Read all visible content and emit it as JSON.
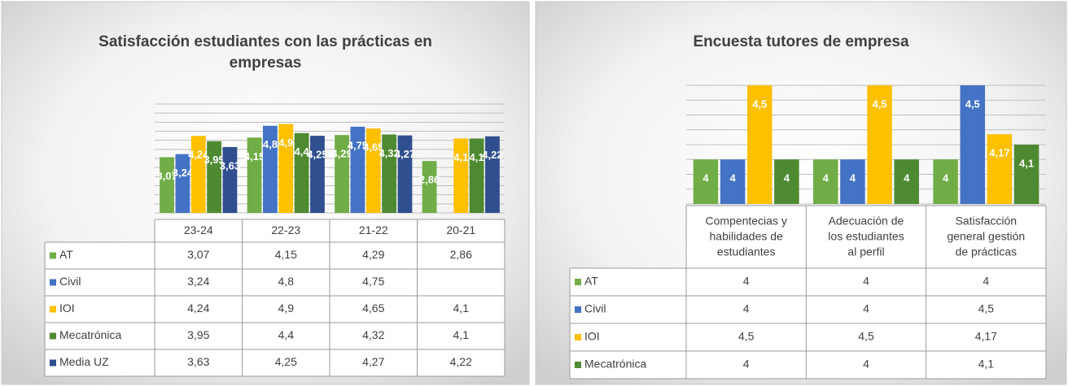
{
  "chart_data": [
    {
      "type": "bar",
      "title": "Satisfacción estudiantes con las prácticas en empresas",
      "categories": [
        "23-24",
        "22-23",
        "21-22",
        "20-21"
      ],
      "series": [
        {
          "name": "AT",
          "color": "#70ad47",
          "values": [
            3.07,
            4.15,
            4.29,
            2.86
          ],
          "value_labels": [
            "3,07",
            "4,15",
            "4,29",
            "2,86"
          ]
        },
        {
          "name": "Civil",
          "color": "#4472c4",
          "values": [
            3.24,
            4.8,
            4.75,
            null
          ],
          "value_labels": [
            "3,24",
            "4,8",
            "4,75",
            null
          ]
        },
        {
          "name": "IOI",
          "color": "#ffc000",
          "values": [
            4.24,
            4.9,
            4.65,
            4.1
          ],
          "value_labels": [
            "4,24",
            "4,9",
            "4,65",
            "4,1"
          ]
        },
        {
          "name": "Mecatrónica",
          "color": "#4e8a32",
          "values": [
            3.95,
            4.4,
            4.32,
            4.1
          ],
          "value_labels": [
            "3,95",
            "4,4",
            "4,32",
            "4,1"
          ]
        },
        {
          "name": "Media UZ",
          "color": "#2f4f8f",
          "values": [
            3.63,
            4.25,
            4.27,
            4.22
          ],
          "value_labels": [
            "3,63",
            "4,25",
            "4,27",
            "4,22"
          ]
        }
      ],
      "ylim": [
        0,
        6
      ],
      "yticks": [
        0,
        0.5,
        1,
        1.5,
        2,
        2.5,
        3,
        3.5,
        4,
        4.5,
        5,
        5.5,
        6
      ],
      "grid": true
    },
    {
      "type": "bar",
      "title": "Encuesta tutores de empresa",
      "categories": [
        "Compentecias y habilidades de estudiantes",
        "Adecuación de los estudiantes al perfil",
        "Satisfacción general gestión de prácticas"
      ],
      "series": [
        {
          "name": "AT",
          "color": "#70ad47",
          "values": [
            4,
            4,
            4
          ],
          "value_labels": [
            "4",
            "4",
            "4"
          ]
        },
        {
          "name": "Civil",
          "color": "#4472c4",
          "values": [
            4,
            4,
            4.5
          ],
          "value_labels": [
            "4",
            "4",
            "4,5"
          ]
        },
        {
          "name": "IOI",
          "color": "#ffc000",
          "values": [
            4.5,
            4.5,
            4.17
          ],
          "value_labels": [
            "4,5",
            "4,5",
            "4,17"
          ]
        },
        {
          "name": "Mecatrónica",
          "color": "#4e8a32",
          "values": [
            4,
            4,
            4.1
          ],
          "value_labels": [
            "4",
            "4",
            "4,1"
          ]
        }
      ],
      "ylim": [
        3.7,
        4.5
      ],
      "yticks": [
        3.7,
        3.8,
        3.9,
        4,
        4.1,
        4.2,
        4.3,
        4.4,
        4.5
      ],
      "grid": true
    }
  ]
}
